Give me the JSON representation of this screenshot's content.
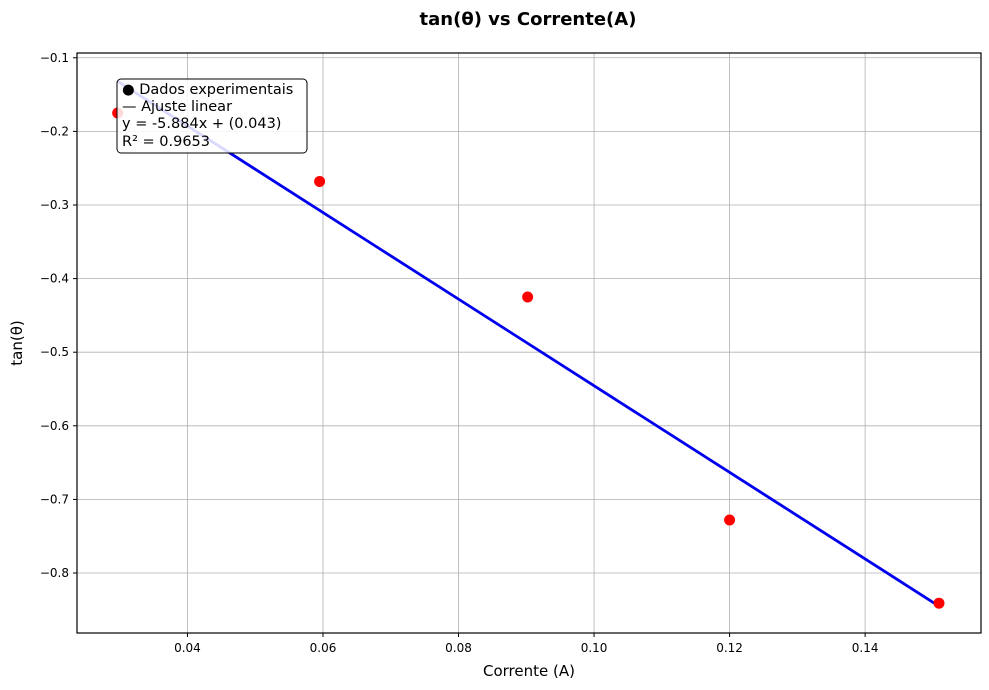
{
  "chart_data": {
    "type": "scatter",
    "title": "tan(θ) vs Corrente(A)",
    "xlabel": "Corrente (A)",
    "ylabel": "tan(θ)",
    "xlim": [
      0.0237,
      0.1571
    ],
    "ylim": [
      -0.8815,
      -0.0935
    ],
    "xticks": [
      0.04,
      0.06,
      0.08,
      0.1,
      0.12,
      0.14
    ],
    "xtick_labels": [
      "0.04",
      "0.06",
      "0.08",
      "0.10",
      "0.12",
      "0.14"
    ],
    "yticks": [
      -0.1,
      -0.2,
      -0.3,
      -0.4,
      -0.5,
      -0.6,
      -0.7,
      -0.8
    ],
    "ytick_labels": [
      "−0.1",
      "−0.2",
      "−0.3",
      "−0.4",
      "−0.5",
      "−0.6",
      "−0.7",
      "−0.8"
    ],
    "grid": true,
    "legend_position": "top-left",
    "points": {
      "x": [
        0.0297,
        0.0595,
        0.0902,
        0.12,
        0.1509
      ],
      "y": [
        -0.175,
        -0.268,
        -0.425,
        -0.728,
        -0.841
      ],
      "color": "#ff0000"
    },
    "fit_line": {
      "x": [
        0.0297,
        0.1509
      ],
      "y": [
        -0.132,
        -0.845
      ],
      "color": "#0000ee"
    },
    "legend": {
      "entries": [
        "● Dados experimentais",
        "— Ajuste linear",
        "y = -5.884x + (0.043)",
        "R² = 0.9653"
      ]
    }
  }
}
